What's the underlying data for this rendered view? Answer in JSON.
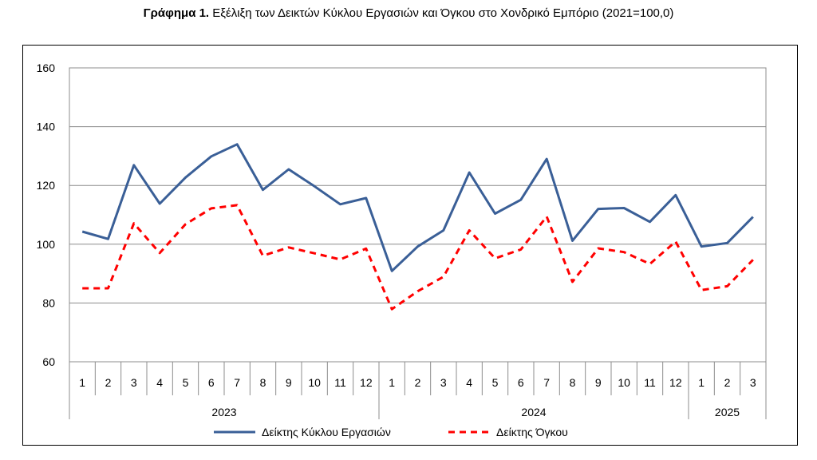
{
  "title": {
    "bold": "Γράφημα 1.",
    "text": "Εξέλιξη των Δεικτών Κύκλου Εργασιών και Όγκου στο Χονδρικό Εμπόριο (2021=100,0)"
  },
  "chart_data": {
    "type": "line",
    "title": "Γράφημα 1. Εξέλιξη των Δεικτών Κύκλου Εργασιών και Όγκου στο Χονδρικό Εμπόριο (2021=100,0)",
    "categories": [
      "1",
      "2",
      "3",
      "4",
      "5",
      "6",
      "7",
      "8",
      "9",
      "10",
      "11",
      "12",
      "1",
      "2",
      "3",
      "4",
      "5",
      "6",
      "7",
      "8",
      "9",
      "10",
      "11",
      "12",
      "1",
      "2",
      "3"
    ],
    "year_groups": [
      {
        "label": "2023",
        "count": 12
      },
      {
        "label": "2024",
        "count": 12
      },
      {
        "label": "2025",
        "count": 3
      }
    ],
    "ylim": [
      60,
      160
    ],
    "yticks": [
      60,
      80,
      100,
      120,
      140,
      160
    ],
    "grid": true,
    "legend_position": "bottom",
    "series": [
      {
        "name": "Δείκτης Κύκλου Εργασιών",
        "color": "#3a5f97",
        "style": "solid",
        "values": [
          104.3,
          101.8,
          126.9,
          113.8,
          122.7,
          129.9,
          134.0,
          118.5,
          125.5,
          119.7,
          113.6,
          115.7,
          90.9,
          99.2,
          104.7,
          124.4,
          110.4,
          115.1,
          129.0,
          101.2,
          112.0,
          112.3,
          107.6,
          116.7,
          99.2,
          100.4,
          109.3
        ]
      },
      {
        "name": "Δείκτης Όγκου",
        "color": "#ff0000",
        "style": "dashed",
        "values": [
          85.0,
          85.0,
          107.1,
          97.0,
          106.8,
          112.2,
          113.3,
          96.1,
          98.9,
          96.9,
          94.8,
          98.5,
          77.9,
          84.0,
          88.9,
          104.7,
          95.2,
          98.2,
          109.4,
          87.2,
          98.6,
          97.3,
          93.3,
          100.9,
          84.4,
          85.7,
          94.7
        ]
      }
    ]
  }
}
